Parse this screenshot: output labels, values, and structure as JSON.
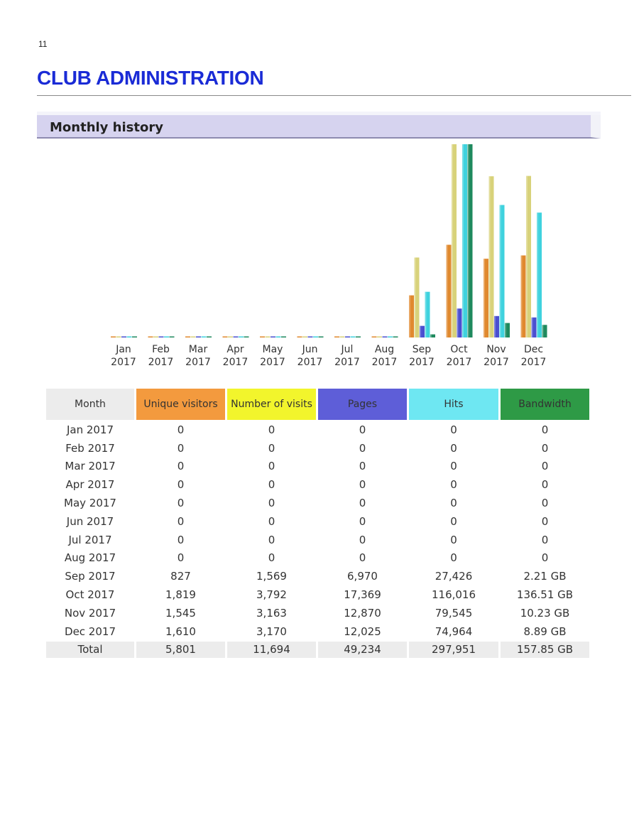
{
  "page": {
    "number": "11",
    "title": "CLUB ADMINISTRATION"
  },
  "panel": {
    "title": "Monthly history"
  },
  "colors": {
    "unique": "#e0892e",
    "visits": "#d8d27a",
    "pages": "#4a4fd0",
    "hits": "#3fd2de",
    "bandwidth": "#1f8a5e"
  },
  "table": {
    "headers": {
      "month": "Month",
      "unique": "Unique visitors",
      "visits": "Number of visits",
      "pages": "Pages",
      "hits": "Hits",
      "bandwidth": "Bandwidth"
    },
    "rows": [
      {
        "month": "Jan 2017",
        "unique": "0",
        "visits": "0",
        "pages": "0",
        "hits": "0",
        "bandwidth": "0"
      },
      {
        "month": "Feb 2017",
        "unique": "0",
        "visits": "0",
        "pages": "0",
        "hits": "0",
        "bandwidth": "0"
      },
      {
        "month": "Mar 2017",
        "unique": "0",
        "visits": "0",
        "pages": "0",
        "hits": "0",
        "bandwidth": "0"
      },
      {
        "month": "Apr 2017",
        "unique": "0",
        "visits": "0",
        "pages": "0",
        "hits": "0",
        "bandwidth": "0"
      },
      {
        "month": "May 2017",
        "unique": "0",
        "visits": "0",
        "pages": "0",
        "hits": "0",
        "bandwidth": "0"
      },
      {
        "month": "Jun 2017",
        "unique": "0",
        "visits": "0",
        "pages": "0",
        "hits": "0",
        "bandwidth": "0"
      },
      {
        "month": "Jul 2017",
        "unique": "0",
        "visits": "0",
        "pages": "0",
        "hits": "0",
        "bandwidth": "0"
      },
      {
        "month": "Aug 2017",
        "unique": "0",
        "visits": "0",
        "pages": "0",
        "hits": "0",
        "bandwidth": "0"
      },
      {
        "month": "Sep 2017",
        "unique": "827",
        "visits": "1,569",
        "pages": "6,970",
        "hits": "27,426",
        "bandwidth": "2.21 GB"
      },
      {
        "month": "Oct 2017",
        "unique": "1,819",
        "visits": "3,792",
        "pages": "17,369",
        "hits": "116,016",
        "bandwidth": "136.51 GB"
      },
      {
        "month": "Nov 2017",
        "unique": "1,545",
        "visits": "3,163",
        "pages": "12,870",
        "hits": "79,545",
        "bandwidth": "10.23 GB"
      },
      {
        "month": "Dec 2017",
        "unique": "1,610",
        "visits": "3,170",
        "pages": "12,025",
        "hits": "74,964",
        "bandwidth": "8.89 GB"
      }
    ],
    "total": {
      "month": "Total",
      "unique": "5,801",
      "visits": "11,694",
      "pages": "49,234",
      "hits": "297,951",
      "bandwidth": "157.85 GB"
    }
  },
  "chart_data": {
    "type": "bar",
    "title": "Monthly history",
    "categories": [
      [
        "Jan",
        "2017"
      ],
      [
        "Feb",
        "2017"
      ],
      [
        "Mar",
        "2017"
      ],
      [
        "Apr",
        "2017"
      ],
      [
        "May",
        "2017"
      ],
      [
        "Jun",
        "2017"
      ],
      [
        "Jul",
        "2017"
      ],
      [
        "Aug",
        "2017"
      ],
      [
        "Sep",
        "2017"
      ],
      [
        "Oct",
        "2017"
      ],
      [
        "Nov",
        "2017"
      ],
      [
        "Dec",
        "2017"
      ]
    ],
    "series": [
      {
        "key": "unique",
        "values": [
          0,
          0,
          0,
          0,
          0,
          0,
          0,
          0,
          827,
          1819,
          1545,
          1610
        ]
      },
      {
        "key": "visits",
        "values": [
          0,
          0,
          0,
          0,
          0,
          0,
          0,
          0,
          1569,
          3792,
          3163,
          3170
        ]
      },
      {
        "key": "pages",
        "values": [
          0,
          0,
          0,
          0,
          0,
          0,
          0,
          0,
          6970,
          17369,
          12870,
          12025
        ]
      },
      {
        "key": "hits",
        "values": [
          0,
          0,
          0,
          0,
          0,
          0,
          0,
          0,
          27426,
          116016,
          79545,
          74964
        ]
      },
      {
        "key": "bandwidth",
        "values": [
          0,
          0,
          0,
          0,
          0,
          0,
          0,
          0,
          2.21,
          136.51,
          10.23,
          8.89
        ]
      }
    ],
    "scale_groups": [
      [
        "unique",
        "visits"
      ],
      [
        "pages",
        "hits"
      ],
      [
        "bandwidth"
      ]
    ],
    "legend": "none",
    "grid": false
  }
}
